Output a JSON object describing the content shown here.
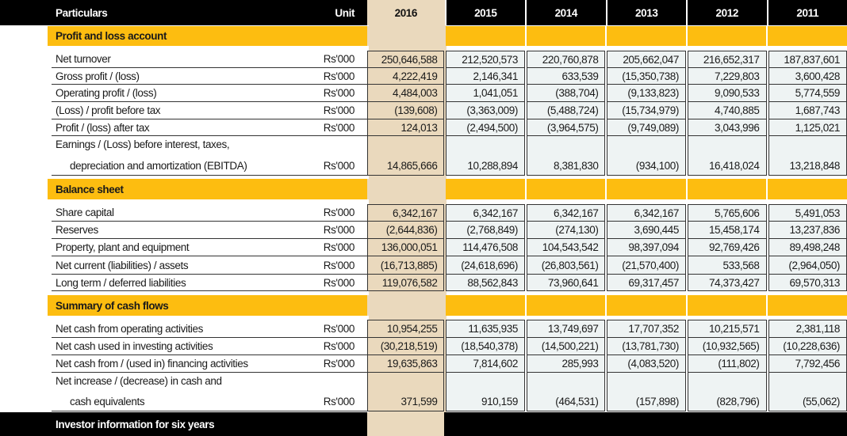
{
  "header": {
    "particulars": "Particulars",
    "unit": "Unit",
    "years": [
      "2016",
      "2015",
      "2014",
      "2013",
      "2012",
      "2011"
    ]
  },
  "sections": [
    {
      "title": "Profit and loss account",
      "rows": [
        {
          "label": "Net turnover",
          "unit": "Rs'000",
          "values": [
            "250,646,588",
            "212,520,573",
            "220,760,878",
            "205,662,047",
            "216,652,317",
            "187,837,601"
          ]
        },
        {
          "label": "Gross profit / (loss)",
          "unit": "Rs'000",
          "values": [
            "4,222,419",
            "2,146,341",
            "633,539",
            "(15,350,738)",
            "7,229,803",
            "3,600,428"
          ]
        },
        {
          "label": "Operating profit / (loss)",
          "unit": "Rs'000",
          "values": [
            "4,484,003",
            "1,041,051",
            "(388,704)",
            "(9,133,823)",
            "9,090,533",
            "5,774,559"
          ]
        },
        {
          "label": "(Loss) / profit before tax",
          "unit": "Rs'000",
          "values": [
            "(139,608)",
            "(3,363,009)",
            "(5,488,724)",
            "(15,734,979)",
            "4,740,885",
            "1,687,743"
          ]
        },
        {
          "label": "Profit / (loss) after tax",
          "unit": "Rs'000",
          "values": [
            "124,013",
            "(2,494,500)",
            "(3,964,575)",
            "(9,749,089)",
            "3,043,996",
            "1,125,021"
          ]
        },
        {
          "label": "Earnings / (Loss) before interest, taxes,",
          "label2": "depreciation and amortization (EBITDA)",
          "unit": "Rs'000",
          "values": [
            "14,865,666",
            "10,288,894",
            "8,381,830",
            "(934,100)",
            "16,418,024",
            "13,218,848"
          ]
        }
      ]
    },
    {
      "title": "Balance sheet",
      "rows": [
        {
          "label": "Share capital",
          "unit": "Rs'000",
          "values": [
            "6,342,167",
            "6,342,167",
            "6,342,167",
            "6,342,167",
            "5,765,606",
            "5,491,053"
          ]
        },
        {
          "label": "Reserves",
          "unit": "Rs'000",
          "values": [
            "(2,644,836)",
            "(2,768,849)",
            "(274,130)",
            "3,690,445",
            "15,458,174",
            "13,237,836"
          ]
        },
        {
          "label": "Property, plant and equipment",
          "unit": "Rs'000",
          "values": [
            "136,000,051",
            "114,476,508",
            "104,543,542",
            "98,397,094",
            "92,769,426",
            "89,498,248"
          ]
        },
        {
          "label": "Net current (liabilities) / assets",
          "unit": "Rs'000",
          "values": [
            "(16,713,885)",
            "(24,618,696)",
            "(26,803,561)",
            "(21,570,400)",
            "533,568",
            "(2,964,050)"
          ]
        },
        {
          "label": "Long term / deferred liabilities",
          "unit": "Rs'000",
          "values": [
            "119,076,582",
            "88,562,843",
            "73,960,641",
            "69,317,457",
            "74,373,427",
            "69,570,313"
          ]
        }
      ]
    },
    {
      "title": "Summary of cash flows",
      "rows": [
        {
          "label": "Net cash from operating activities",
          "unit": "Rs'000",
          "values": [
            "10,954,255",
            "11,635,935",
            "13,749,697",
            "17,707,352",
            "10,215,571",
            "2,381,118"
          ]
        },
        {
          "label": "Net cash used in investing activities",
          "unit": "Rs'000",
          "values": [
            "(30,218,519)",
            "(18,540,378)",
            "(14,500,221)",
            "(13,781,730)",
            "(10,932,565)",
            "(10,228,636)"
          ]
        },
        {
          "label": "Net cash from / (used in) financing activities",
          "unit": "Rs'000",
          "values": [
            "19,635,863",
            "7,814,602",
            "285,993",
            "(4,083,520)",
            "(111,802)",
            "7,792,456"
          ]
        },
        {
          "label": "Net increase / (decrease) in cash and",
          "label2": "cash equivalents",
          "unit": "Rs'000",
          "values": [
            "371,599",
            "910,159",
            "(464,531)",
            "(157,898)",
            "(828,796)",
            "(55,062)"
          ]
        }
      ]
    }
  ],
  "footer": {
    "title": "Investor information for six years"
  },
  "colors": {
    "header_bg": "#000000",
    "section_bg": "#fdbd10",
    "highlight_column": "#ead9bd",
    "cell_bg": "#eef3f3"
  }
}
